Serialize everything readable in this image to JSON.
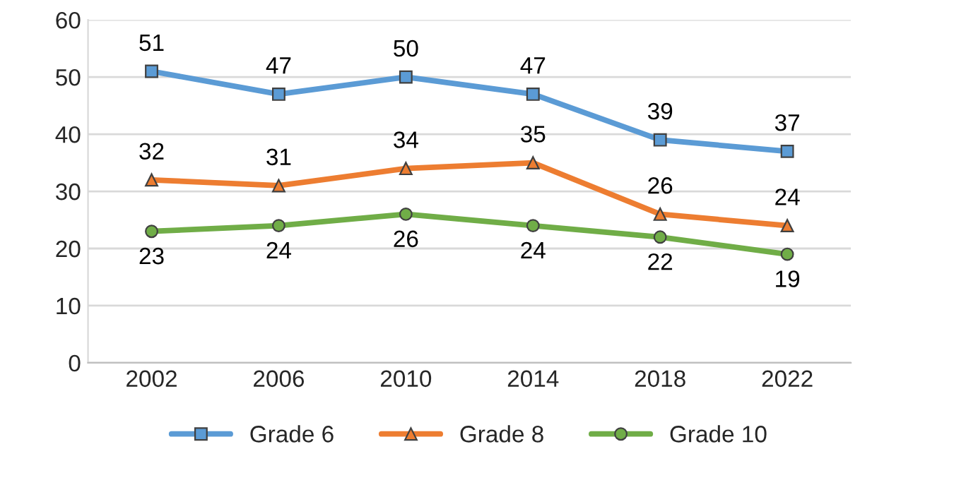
{
  "chart_data": {
    "type": "line",
    "categories": [
      "2002",
      "2006",
      "2010",
      "2014",
      "2018",
      "2022"
    ],
    "series": [
      {
        "name": "Grade 6",
        "color": "#5b9bd5",
        "marker": "square",
        "values": [
          51,
          47,
          50,
          47,
          39,
          37
        ]
      },
      {
        "name": "Grade 8",
        "color": "#ed7d31",
        "marker": "triangle",
        "values": [
          32,
          31,
          34,
          35,
          26,
          24
        ]
      },
      {
        "name": "Grade 10",
        "color": "#70ad47",
        "marker": "circle",
        "values": [
          23,
          24,
          26,
          24,
          22,
          19
        ]
      }
    ],
    "ylim": [
      0,
      60
    ],
    "yticks": [
      0,
      10,
      20,
      30,
      40,
      50,
      60
    ],
    "grid": "y",
    "legend": "bottom",
    "data_labels": true,
    "line_style": "solid"
  }
}
